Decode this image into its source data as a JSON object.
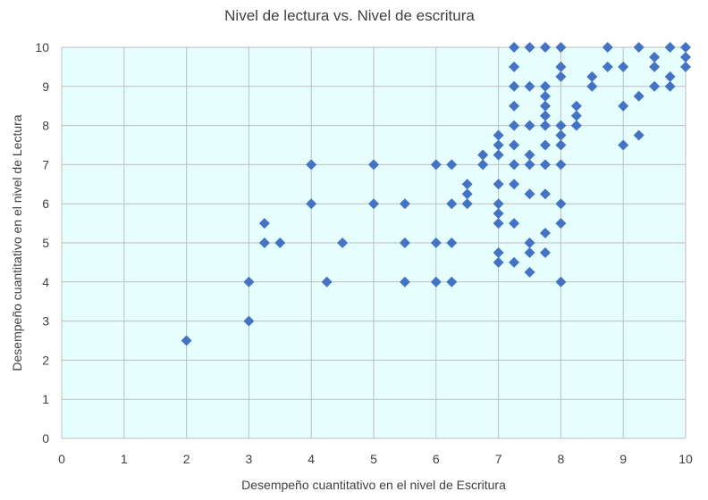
{
  "chart_data": {
    "type": "scatter",
    "title": "Nivel de lectura vs. Nivel de escritura",
    "xlabel": "Desempeño cuantitativo en el nivel de Escritura",
    "ylabel": "Desempeño cuantitativo en el  nivel de Lectura",
    "xlim": [
      0,
      10
    ],
    "ylim": [
      0,
      10
    ],
    "xticks": [
      "0",
      "1",
      "2",
      "3",
      "4",
      "5",
      "6",
      "7",
      "8",
      "9",
      "10"
    ],
    "yticks": [
      "0",
      "1",
      "2",
      "3",
      "4",
      "5",
      "6",
      "7",
      "8",
      "9",
      "10"
    ],
    "grid": true,
    "legend": "none",
    "colors": {
      "marker": "#4472C4",
      "plot_background": "#E6FEFE",
      "grid": "#BFBFBF"
    },
    "points": [
      [
        2,
        2.5
      ],
      [
        3,
        3
      ],
      [
        3,
        4
      ],
      [
        3.25,
        5
      ],
      [
        3.25,
        5.5
      ],
      [
        3.5,
        5
      ],
      [
        4,
        6
      ],
      [
        4,
        7
      ],
      [
        4.25,
        4
      ],
      [
        4.5,
        5
      ],
      [
        5,
        6
      ],
      [
        5,
        7
      ],
      [
        5.5,
        4
      ],
      [
        5.5,
        5
      ],
      [
        5.5,
        6
      ],
      [
        6,
        4
      ],
      [
        6,
        5
      ],
      [
        6,
        7
      ],
      [
        6.25,
        4
      ],
      [
        6.25,
        5
      ],
      [
        6.25,
        6
      ],
      [
        6.25,
        7
      ],
      [
        6.5,
        6
      ],
      [
        6.5,
        6.25
      ],
      [
        6.5,
        6.5
      ],
      [
        6.75,
        7
      ],
      [
        6.75,
        7.25
      ],
      [
        7,
        4.5
      ],
      [
        7,
        4.75
      ],
      [
        7,
        5.5
      ],
      [
        7,
        5.75
      ],
      [
        7,
        6
      ],
      [
        7,
        6.5
      ],
      [
        7,
        7.25
      ],
      [
        7,
        7.5
      ],
      [
        7,
        7.75
      ],
      [
        7.25,
        4.5
      ],
      [
        7.25,
        5.5
      ],
      [
        7.25,
        6.5
      ],
      [
        7.25,
        7
      ],
      [
        7.25,
        7.5
      ],
      [
        7.25,
        8
      ],
      [
        7.25,
        8.5
      ],
      [
        7.25,
        9
      ],
      [
        7.25,
        9.5
      ],
      [
        7.25,
        10
      ],
      [
        7.5,
        4.25
      ],
      [
        7.5,
        4.75
      ],
      [
        7.5,
        5
      ],
      [
        7.5,
        6.25
      ],
      [
        7.5,
        7
      ],
      [
        7.5,
        7.25
      ],
      [
        7.5,
        8
      ],
      [
        7.5,
        9
      ],
      [
        7.5,
        10
      ],
      [
        7.75,
        4.75
      ],
      [
        7.75,
        5.25
      ],
      [
        7.75,
        6.25
      ],
      [
        7.75,
        7
      ],
      [
        7.75,
        7.5
      ],
      [
        7.75,
        8
      ],
      [
        7.75,
        8.25
      ],
      [
        7.75,
        8.5
      ],
      [
        7.75,
        8.75
      ],
      [
        7.75,
        9
      ],
      [
        7.75,
        10
      ],
      [
        8,
        4
      ],
      [
        8,
        5.5
      ],
      [
        8,
        6
      ],
      [
        8,
        7
      ],
      [
        8,
        7.5
      ],
      [
        8,
        7.75
      ],
      [
        8,
        8
      ],
      [
        8,
        9.25
      ],
      [
        8,
        9.5
      ],
      [
        8,
        10
      ],
      [
        8.25,
        8
      ],
      [
        8.25,
        8.25
      ],
      [
        8.25,
        8.5
      ],
      [
        8.5,
        9
      ],
      [
        8.5,
        9.25
      ],
      [
        8.75,
        9.5
      ],
      [
        8.75,
        10
      ],
      [
        9,
        7.5
      ],
      [
        9,
        8.5
      ],
      [
        9,
        9.5
      ],
      [
        9.25,
        7.75
      ],
      [
        9.25,
        8.75
      ],
      [
        9.25,
        10
      ],
      [
        9.5,
        9
      ],
      [
        9.5,
        9.5
      ],
      [
        9.5,
        9.75
      ],
      [
        9.75,
        9
      ],
      [
        9.75,
        9.25
      ],
      [
        9.75,
        10
      ],
      [
        10,
        9.5
      ],
      [
        10,
        9.75
      ],
      [
        10,
        10
      ]
    ]
  }
}
